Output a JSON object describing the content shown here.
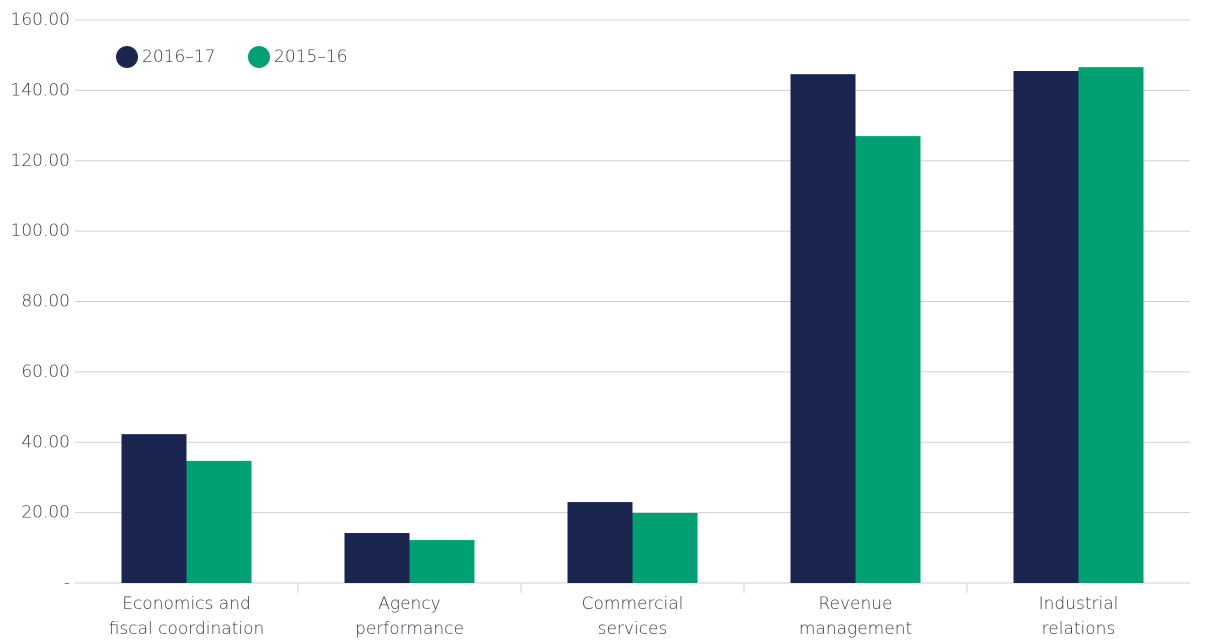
{
  "chart_data": {
    "type": "bar",
    "categories": [
      [
        "Economics and",
        "fiscal coordination"
      ],
      [
        "Agency",
        "performance"
      ],
      [
        "Commercial",
        "services"
      ],
      [
        "Revenue",
        "management"
      ],
      [
        "Industrial",
        "relations"
      ]
    ],
    "series": [
      {
        "name": "2016–17",
        "color": "#1a2550",
        "values": [
          42.3,
          14.2,
          23.0,
          144.6,
          145.5
        ]
      },
      {
        "name": "2015–16",
        "color": "#00a072",
        "values": [
          34.7,
          12.2,
          19.9,
          127.0,
          146.6
        ]
      }
    ],
    "ylim": [
      0,
      160
    ],
    "yticks": [
      {
        "value": 0,
        "label": "-"
      },
      {
        "value": 20,
        "label": "20.00"
      },
      {
        "value": 40,
        "label": "40.00"
      },
      {
        "value": 60,
        "label": "60.00"
      },
      {
        "value": 80,
        "label": "80.00"
      },
      {
        "value": 100,
        "label": "100.00"
      },
      {
        "value": 120,
        "label": "120.00"
      },
      {
        "value": 140,
        "label": "140.00"
      },
      {
        "value": 160,
        "label": "160.00"
      }
    ],
    "grid": true,
    "legend": "top-left"
  }
}
